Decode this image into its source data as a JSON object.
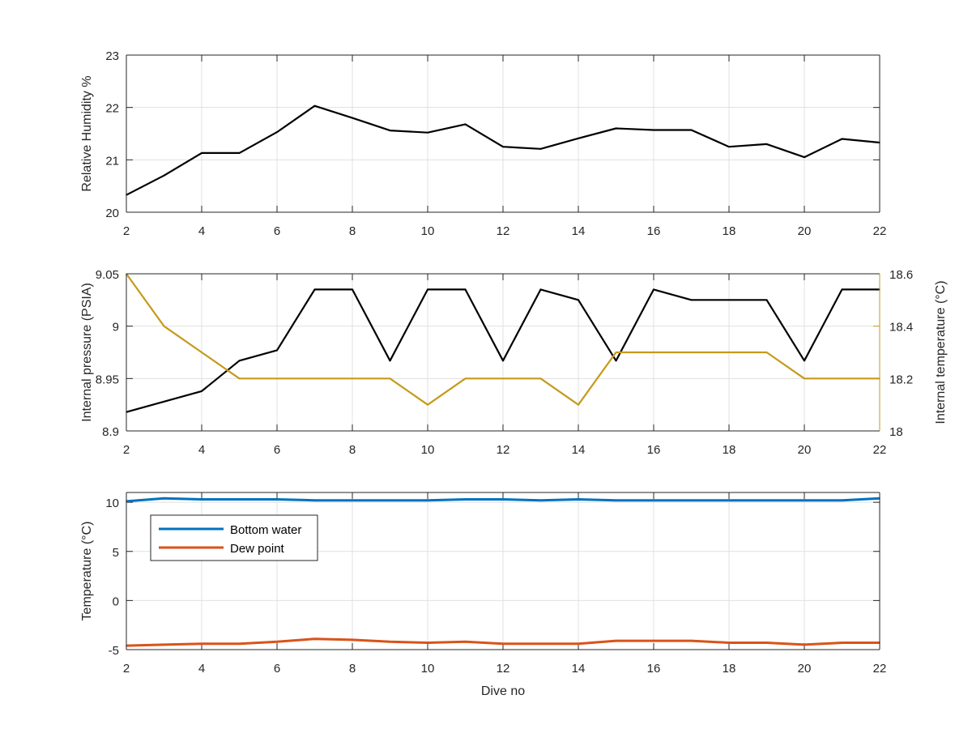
{
  "chart_data": [
    {
      "type": "line",
      "x": [
        2,
        3,
        4,
        5,
        6,
        7,
        8,
        9,
        10,
        11,
        12,
        13,
        14,
        15,
        16,
        17,
        18,
        19,
        20,
        21,
        22
      ],
      "xlim": [
        2,
        22
      ],
      "xticks": [
        "2",
        "4",
        "6",
        "8",
        "10",
        "12",
        "14",
        "16",
        "18",
        "20",
        "22"
      ],
      "ylim": [
        20,
        23
      ],
      "yticks": [
        "20",
        "21",
        "22",
        "23"
      ],
      "ylabel": "Relative Humidity %",
      "grid": true,
      "series": [
        {
          "color": "#000000",
          "values": [
            20.33,
            20.7,
            21.13,
            21.13,
            21.53,
            22.03,
            21.8,
            21.56,
            21.52,
            21.68,
            21.25,
            21.21,
            21.41,
            21.6,
            21.57,
            21.57,
            21.25,
            21.3,
            21.05,
            21.4,
            21.33
          ]
        }
      ]
    },
    {
      "type": "line",
      "x": [
        2,
        3,
        4,
        5,
        6,
        7,
        8,
        9,
        10,
        11,
        12,
        13,
        14,
        15,
        16,
        17,
        18,
        19,
        20,
        21,
        22
      ],
      "xlim": [
        2,
        22
      ],
      "xticks": [
        "2",
        "4",
        "6",
        "8",
        "10",
        "12",
        "14",
        "16",
        "18",
        "20",
        "22"
      ],
      "ylim": [
        8.9,
        9.05
      ],
      "yticks": [
        "8.9",
        "8.95",
        "9",
        "9.05"
      ],
      "ylabel": "Internal pressure (PSIA)",
      "ylim_right": [
        18,
        18.6
      ],
      "yticks_right": [
        "18",
        "18.2",
        "18.4",
        "18.6"
      ],
      "ylabel_right": "Internal temperature (°C)",
      "right_axis_color": "#c59a1b",
      "grid": true,
      "series": [
        {
          "axis": "left",
          "color": "#000000",
          "values": [
            8.918,
            8.928,
            8.938,
            8.967,
            8.977,
            9.035,
            9.035,
            8.967,
            9.035,
            9.035,
            8.967,
            9.035,
            9.025,
            8.967,
            9.035,
            9.025,
            9.025,
            9.025,
            8.967,
            9.035,
            9.035
          ]
        },
        {
          "axis": "right",
          "color": "#c59a1b",
          "values": [
            18.6,
            18.4,
            18.3,
            18.2,
            18.2,
            18.2,
            18.2,
            18.2,
            18.1,
            18.2,
            18.2,
            18.2,
            18.1,
            18.3,
            18.3,
            18.3,
            18.3,
            18.3,
            18.2,
            18.2,
            18.2
          ]
        }
      ]
    },
    {
      "type": "line",
      "x": [
        2,
        3,
        4,
        5,
        6,
        7,
        8,
        9,
        10,
        11,
        12,
        13,
        14,
        15,
        16,
        17,
        18,
        19,
        20,
        21,
        22
      ],
      "xlim": [
        2,
        22
      ],
      "xticks": [
        "2",
        "4",
        "6",
        "8",
        "10",
        "12",
        "14",
        "16",
        "18",
        "20",
        "22"
      ],
      "ylim": [
        -5,
        11
      ],
      "yticks": [
        "-5",
        "0",
        "5",
        "10"
      ],
      "ylabel": "Temperature (°C)",
      "xlabel": "Dive no",
      "grid": true,
      "legend": "top-left",
      "series": [
        {
          "name": "Bottom water",
          "color": "#0072bd",
          "values": [
            10.1,
            10.4,
            10.3,
            10.3,
            10.3,
            10.2,
            10.2,
            10.2,
            10.2,
            10.3,
            10.3,
            10.2,
            10.3,
            10.2,
            10.2,
            10.2,
            10.2,
            10.2,
            10.2,
            10.2,
            10.4
          ]
        },
        {
          "name": "Dew point",
          "color": "#d95319",
          "values": [
            -4.6,
            -4.5,
            -4.4,
            -4.4,
            -4.2,
            -3.9,
            -4.0,
            -4.2,
            -4.3,
            -4.2,
            -4.4,
            -4.4,
            -4.4,
            -4.1,
            -4.1,
            -4.1,
            -4.3,
            -4.3,
            -4.5,
            -4.3,
            -4.3
          ]
        }
      ]
    }
  ]
}
